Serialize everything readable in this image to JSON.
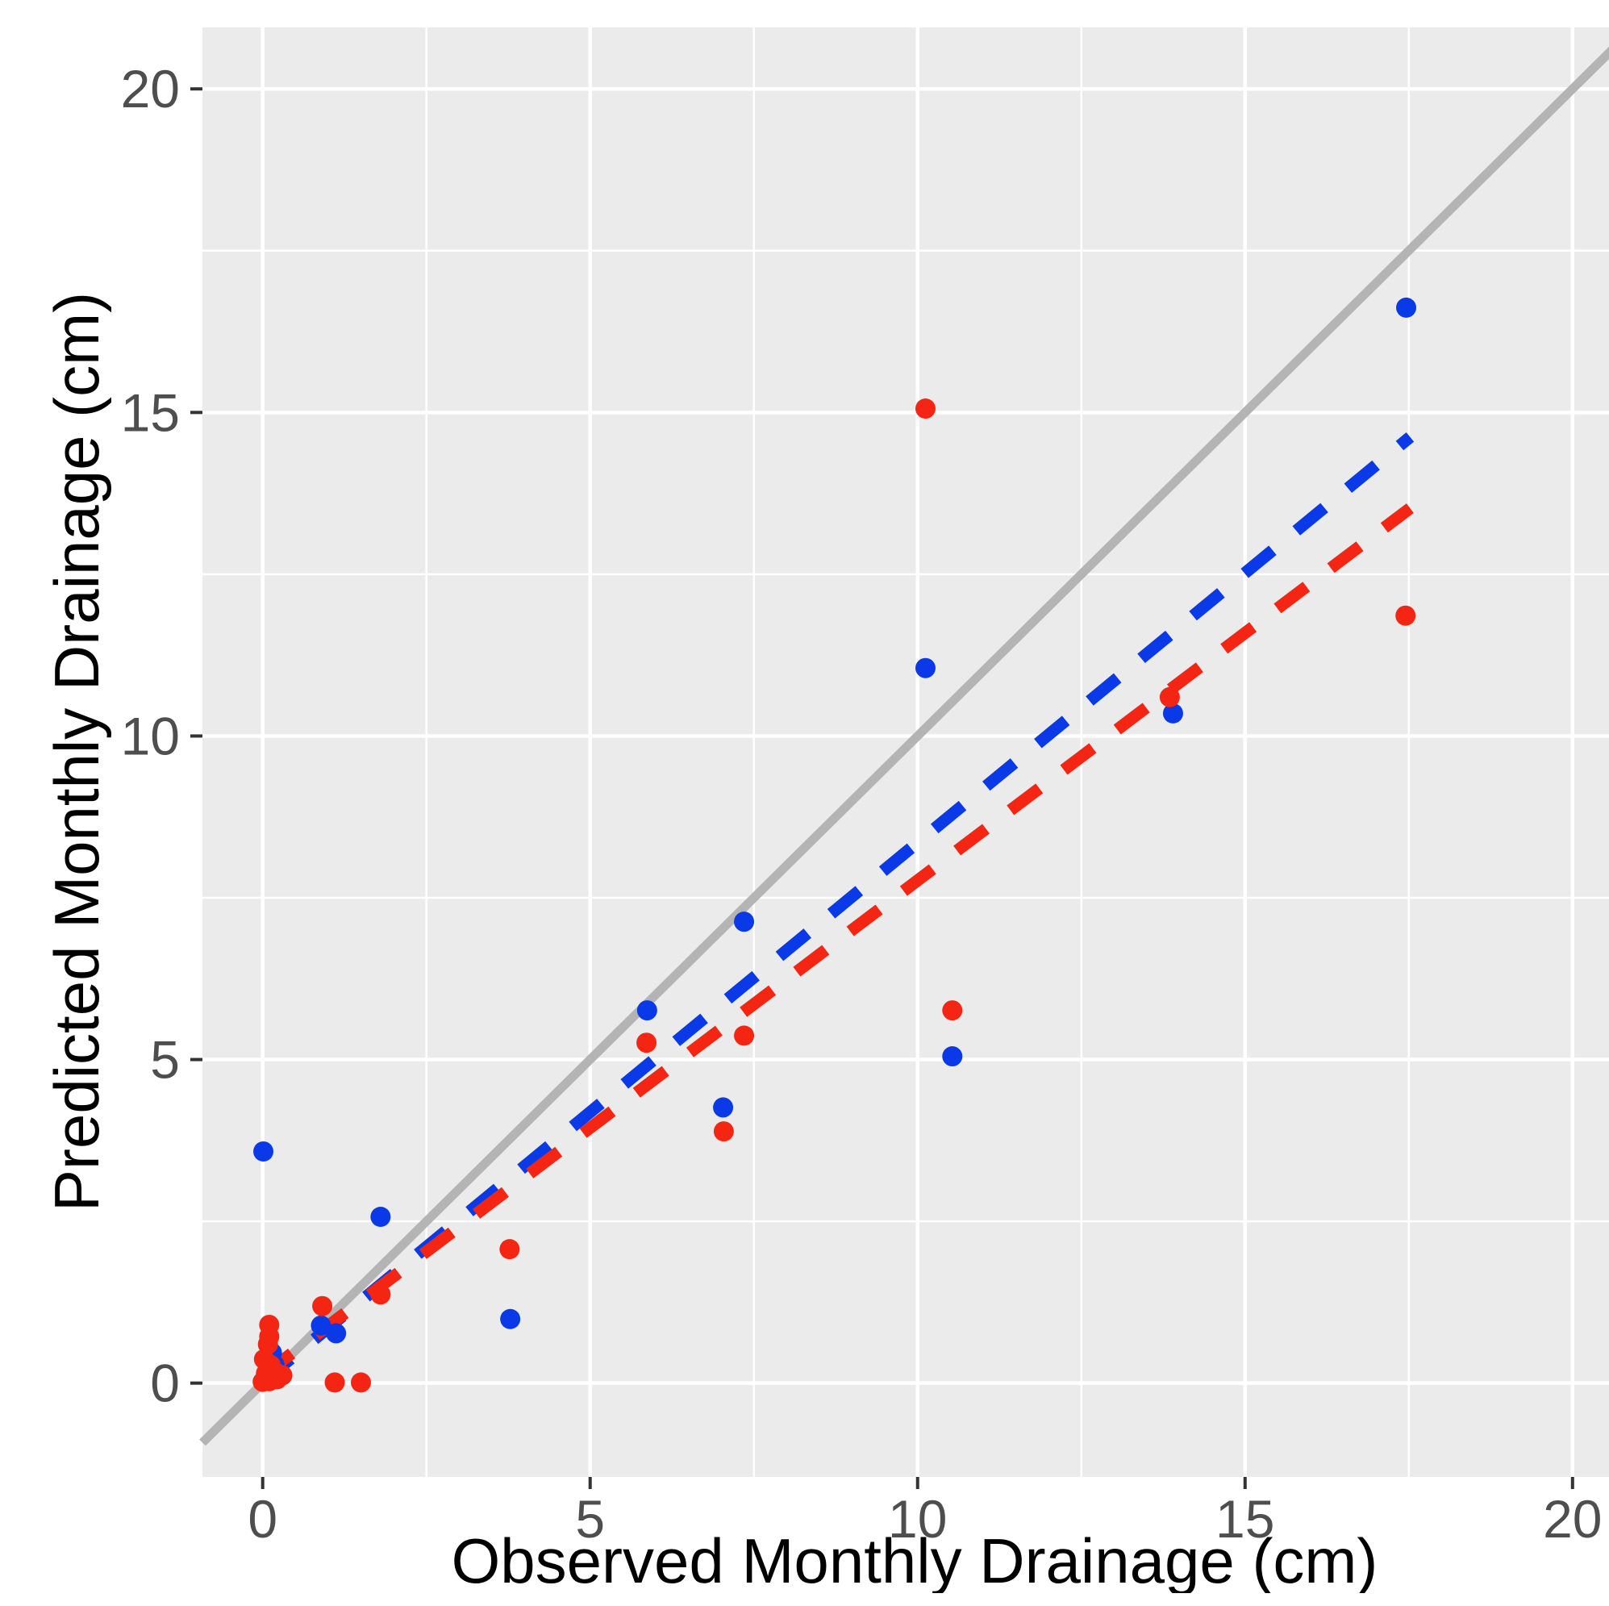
{
  "chart_data": {
    "type": "scatter",
    "title": "",
    "xlabel": "Observed Monthly Drainage (cm)",
    "ylabel": "Predicted Monthly Drainage (cm)",
    "xlim": [
      -0.92,
      20.84
    ],
    "ylim": [
      -1.45,
      20.95
    ],
    "major_ticks": [
      0,
      5,
      10,
      15,
      20
    ],
    "tick_labels": [
      "0",
      "5",
      "10",
      "15",
      "20"
    ],
    "minor_gridlines": [
      2.5,
      7.5,
      12.5,
      17.5
    ],
    "grid": true,
    "legend_position": "none",
    "panel_bg_color": "#EBEBEB",
    "grid_color": "#FFFFFF",
    "tick_text_color": "#4E4E4E",
    "identity_line": {
      "name": "one-to-one-line",
      "color": "#B4B4B4",
      "slope": 1,
      "intercept": 0
    },
    "series": [
      {
        "name": "blue-series",
        "color": "#0A3AE8",
        "points": [
          [
            0.05,
            0.05
          ],
          [
            0.12,
            0.1
          ],
          [
            0.18,
            0.28
          ],
          [
            0.14,
            0.47
          ],
          [
            0.89,
            0.89
          ],
          [
            1.12,
            0.77
          ],
          [
            0.01,
            3.58
          ],
          [
            1.8,
            2.57
          ],
          [
            3.78,
            0.99
          ],
          [
            7.03,
            4.26
          ],
          [
            5.87,
            5.76
          ],
          [
            7.35,
            7.13
          ],
          [
            10.53,
            5.05
          ],
          [
            10.12,
            11.05
          ],
          [
            13.9,
            10.35
          ],
          [
            17.46,
            16.62
          ]
        ]
      },
      {
        "name": "red-series",
        "color": "#F42613",
        "points": [
          [
            0.0,
            0.02
          ],
          [
            0.1,
            0.03
          ],
          [
            0.22,
            0.06
          ],
          [
            0.3,
            0.12
          ],
          [
            0.05,
            0.15
          ],
          [
            0.18,
            0.18
          ],
          [
            0.12,
            0.28
          ],
          [
            0.02,
            0.37
          ],
          [
            0.08,
            0.6
          ],
          [
            0.1,
            0.72
          ],
          [
            0.1,
            0.9
          ],
          [
            0.91,
            1.19
          ],
          [
            1.1,
            0.01
          ],
          [
            1.5,
            0.01
          ],
          [
            1.8,
            1.37
          ],
          [
            3.77,
            2.07
          ],
          [
            5.86,
            5.26
          ],
          [
            7.35,
            5.37
          ],
          [
            7.04,
            3.89
          ],
          [
            10.53,
            5.76
          ],
          [
            10.12,
            15.06
          ],
          [
            13.85,
            10.6
          ],
          [
            17.45,
            11.86
          ]
        ]
      }
    ],
    "trend_lines": [
      {
        "name": "blue-regression-line",
        "color": "#0A3AE8",
        "x0": 0.0,
        "y0": 0.02,
        "x1": 17.52,
        "y1": 14.62,
        "dashed": true
      },
      {
        "name": "red-regression-line",
        "color": "#F42613",
        "x0": 0.0,
        "y0": 0.12,
        "x1": 17.52,
        "y1": 13.52,
        "dashed": true
      }
    ],
    "point_radius_px": 12.5,
    "style": {
      "major_grid_width": 4.5,
      "minor_grid_width": 2.5,
      "identity_line_width": 11,
      "trend_line_width": 15,
      "trend_dash": "45 38",
      "tick_mark_color": "#333333",
      "tick_mark_length": 15
    }
  }
}
